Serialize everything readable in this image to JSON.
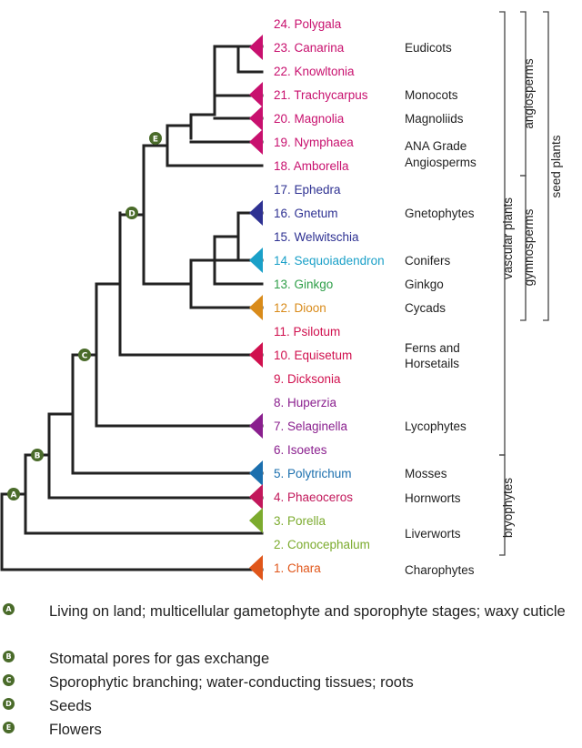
{
  "taxa": [
    {
      "label": "24. Polygala",
      "color": "#c8106e"
    },
    {
      "label": "23. Canarina",
      "color": "#c8106e"
    },
    {
      "label": "22. Knowltonia",
      "color": "#c8106e"
    },
    {
      "label": "21. Trachycarpus",
      "color": "#c8106e"
    },
    {
      "label": "20. Magnolia",
      "color": "#c8106e"
    },
    {
      "label": "19. Nymphaea",
      "color": "#c8106e"
    },
    {
      "label": "18. Amborella",
      "color": "#c8106e"
    },
    {
      "label": "17. Ephedra",
      "color": "#2e3192"
    },
    {
      "label": "16. Gnetum",
      "color": "#2e3192"
    },
    {
      "label": "15. Welwitschia",
      "color": "#2e3192"
    },
    {
      "label": "14. Sequoiadendron",
      "color": "#1aa0c8"
    },
    {
      "label": "13. Ginkgo",
      "color": "#2e9e48"
    },
    {
      "label": "12. Dioon",
      "color": "#d98b1a"
    },
    {
      "label": "11. Psilotum",
      "color": "#d0104e"
    },
    {
      "label": "10. Equisetum",
      "color": "#d0104e"
    },
    {
      "label": "9. Dicksonia",
      "color": "#d0104e"
    },
    {
      "label": "8. Huperzia",
      "color": "#8a1f8e"
    },
    {
      "label": "7. Selaginella",
      "color": "#8a1f8e"
    },
    {
      "label": "6. Isoetes",
      "color": "#8a1f8e"
    },
    {
      "label": "5. Polytrichum",
      "color": "#1b6fae"
    },
    {
      "label": "4. Phaeoceros",
      "color": "#c2185b"
    },
    {
      "label": "3. Porella",
      "color": "#7cab2e"
    },
    {
      "label": "2. Conocephalum",
      "color": "#7cab2e"
    },
    {
      "label": "1. Chara",
      "color": "#e0561a"
    }
  ],
  "groups": {
    "eudicots": "Eudicots",
    "monocots": "Monocots",
    "magnoliids": "Magnoliids",
    "ana_line1": "ANA Grade",
    "ana_line2": "Angiosperms",
    "gnetophytes": "Gnetophytes",
    "conifers": "Conifers",
    "ginkgo": "Ginkgo",
    "cycads": "Cycads",
    "ferns_line1": "Ferns and",
    "ferns_line2": "Horsetails",
    "lycophytes": "Lycophytes",
    "mosses": "Mosses",
    "hornworts": "Hornworts",
    "liverworts": "Liverworts",
    "charophytes": "Charophytes"
  },
  "brackets": {
    "angiosperms": "angiosperms",
    "gymnosperms": "gymnosperms",
    "vascular_plants": "vascular plants",
    "seed_plants": "seed plants",
    "bryophytes": "bryophytes"
  },
  "node_letters": {
    "a": "A",
    "b": "B",
    "c": "C",
    "d": "D",
    "e": "E"
  },
  "legend": [
    {
      "letter": "A",
      "text": "Living on land; multicellular gametophyte and sporophyte stages; waxy cuticle"
    },
    {
      "letter": "B",
      "text": "Stomatal pores for gas exchange"
    },
    {
      "letter": "C",
      "text": "Sporophytic branching; water-conducting tissues; roots"
    },
    {
      "letter": "D",
      "text": "Seeds"
    },
    {
      "letter": "E",
      "text": "Flowers"
    }
  ],
  "colors": {
    "branch": "#222222",
    "node": "#4a6b2a",
    "bracket": "#444444"
  }
}
